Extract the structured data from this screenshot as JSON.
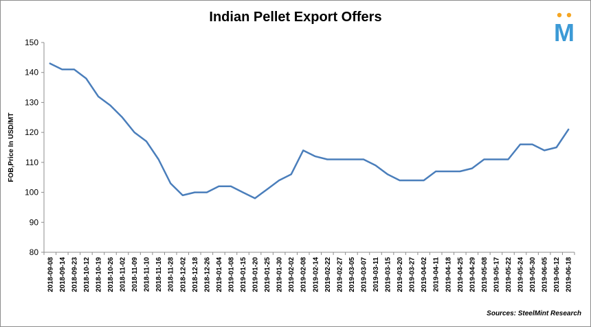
{
  "chart_data": {
    "type": "line",
    "title": "Indian Pellet Export Offers",
    "xlabel": "",
    "ylabel": "FOB,Price In USD/MT",
    "ylim": [
      80,
      150
    ],
    "yticks": [
      80,
      90,
      100,
      110,
      120,
      130,
      140,
      150
    ],
    "grid": false,
    "x": [
      "2018-09-08",
      "2018-09-14",
      "2018-09-23",
      "2018-10-12",
      "2018-10-19",
      "2018-10-26",
      "2018-11-02",
      "2018-11-09",
      "2018-11-10",
      "2018-11-16",
      "2018-11-28",
      "2018-12-02",
      "2018-12-18",
      "2018-12-26",
      "2019-01-04",
      "2019-01-08",
      "2019-01-15",
      "2019-01-20",
      "2019-01-25",
      "2019-01-30",
      "2019-02-02",
      "2019-02-08",
      "2019-02-14",
      "2019-02-22",
      "2019-02-27",
      "2019-03-05",
      "2019-03-07",
      "2019-03-11",
      "2019-03-15",
      "2019-03-20",
      "2019-03-27",
      "2019-04-02",
      "2019-04-11",
      "2019-04-18",
      "2019-04-25",
      "2019-04-29",
      "2019-05-08",
      "2019-05-17",
      "2019-05-22",
      "2019-05-24",
      "2019-05-30",
      "2019-06-05",
      "2019-06-12",
      "2019-06-18"
    ],
    "series": [
      {
        "values": [
          143,
          141,
          141,
          138,
          132,
          129,
          125,
          120,
          117,
          111,
          103,
          99,
          100,
          100,
          102,
          102,
          100,
          98,
          101,
          104,
          106,
          114,
          112,
          111,
          111,
          111,
          111,
          109,
          106,
          104,
          104,
          104,
          107,
          107,
          107,
          108,
          111,
          111,
          111,
          116,
          116,
          114,
          115,
          121
        ],
        "color": "#4a7ebb"
      }
    ]
  },
  "source_text": "Sources: SteelMint Research",
  "logo": {
    "name": "steelmint-logo",
    "letter": "M",
    "colors": [
      "#f5a623",
      "#3c9ad6"
    ]
  }
}
